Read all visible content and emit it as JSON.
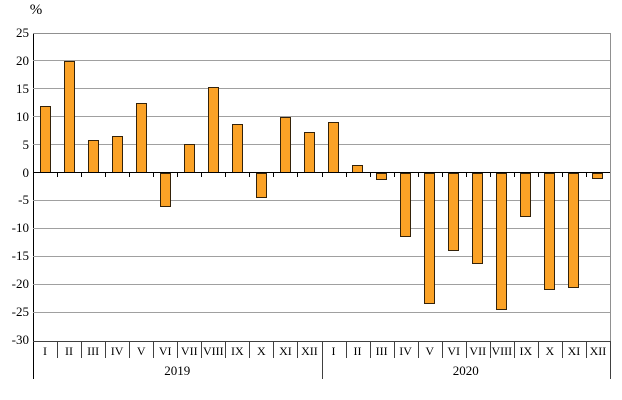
{
  "chart_data": {
    "type": "bar",
    "title": "",
    "unit_label": "%",
    "xlabel": "",
    "ylabel": "%",
    "categories": [
      "I",
      "II",
      "III",
      "IV",
      "V",
      "VI",
      "VII",
      "VIII",
      "IX",
      "X",
      "XI",
      "XII",
      "I",
      "II",
      "III",
      "IV",
      "V",
      "VI",
      "VII",
      "VIII",
      "IX",
      "X",
      "XI",
      "XII"
    ],
    "groups": [
      {
        "label": "2019",
        "span": 12
      },
      {
        "label": "2020",
        "span": 12
      }
    ],
    "series": [
      {
        "name": "monthly-change-percent",
        "values": [
          12.0,
          19.9,
          5.9,
          6.6,
          12.5,
          -6.2,
          5.2,
          15.4,
          8.7,
          -4.6,
          10.0,
          7.2,
          9.0,
          1.4,
          -1.4,
          -11.5,
          -23.6,
          -14.0,
          -16.3,
          -24.7,
          -8.0,
          -21.1,
          -20.7,
          -1.1
        ]
      }
    ],
    "ylim": [
      -30,
      25
    ],
    "ytick_step": 5,
    "yticks": [
      25,
      20,
      15,
      10,
      5,
      0,
      -5,
      -10,
      -15,
      -20,
      -25,
      -30
    ],
    "grid": true,
    "legend": "none",
    "colors": {
      "bar_fill": "#FBA226",
      "bar_border": "#33220A",
      "gridline": "#A0A0A0",
      "axis": "#000000",
      "plot_border": "#909090",
      "background": "#FFFFFF"
    }
  }
}
